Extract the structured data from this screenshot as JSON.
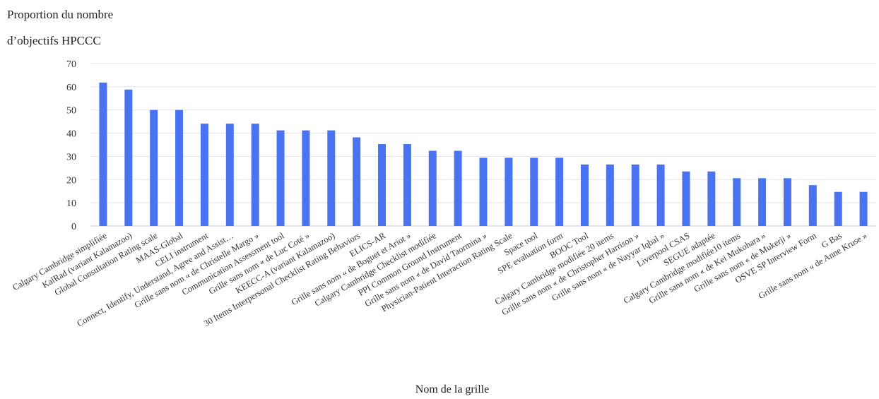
{
  "chart_data": {
    "type": "bar",
    "ylabel_line1": "Proportion du nombre",
    "ylabel_line2": "d’objectifs HPCCC",
    "xlabel": "Nom de la grille",
    "ylim": [
      0,
      70
    ],
    "yticks": [
      0,
      10,
      20,
      30,
      40,
      50,
      60,
      70
    ],
    "grid": true,
    "color": "#4a73f2",
    "categories": [
      "Calgary Cambridge simplifiée",
      "KalRad (variant Kalamazoo)",
      "Global Consultation Rating scale",
      "MAAS-Global",
      "CELI instrument",
      "Connect, Identify, Understand, Agree and Assist…",
      "Grille sans nom « de Christelle Margo »",
      "Communication Assessment tool",
      "Grille sans nom « de Luc Coté »",
      "KEECC-A (variant Kalamazoo)",
      "30 Items Interpersonal Checklist Rating Behaviors",
      "ELICS-AR",
      "Grille sans nom « de Boguet et Ariot »",
      "Calgary Cambridge Checklist modifiée",
      "PPI Common Ground Instrument",
      "Grille sans nom « de David Taormina »",
      "Physician-Patient Interaction Rating Scale",
      "Space tool",
      "SPE evaluation form",
      "BOOC Tool",
      "Calgary Cambridge modifiée 20 items",
      "Grille sans nom « de Christopher Harrison »",
      "Grille sans nom « de Nayyar Iqbal »",
      "Liverpool CSAS",
      "SEGUE adaptée",
      "Calgary Cambridge modifiée10 items",
      "Grille sans nom « de Kei Mukohara »",
      "Grille sans nom « de Mukerji »",
      "OSVE SP Interview Form",
      "G Bas",
      "Grille sans nom « de Anne Kruse »"
    ],
    "values": [
      61.8,
      58.8,
      50,
      50,
      44.1,
      44.1,
      44.1,
      41.2,
      41.2,
      41.2,
      38.2,
      35.3,
      35.3,
      32.4,
      32.4,
      29.4,
      29.4,
      29.4,
      29.4,
      26.5,
      26.5,
      26.5,
      26.5,
      23.5,
      23.5,
      20.6,
      20.6,
      20.6,
      17.6,
      14.7,
      14.7
    ]
  }
}
